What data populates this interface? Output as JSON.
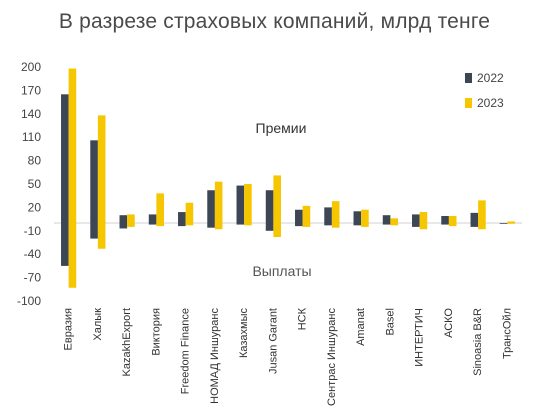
{
  "chart_data": {
    "type": "bar",
    "title": "В разрезе страховых компаний, млрд тенге",
    "annotations": {
      "premiums": "Премии",
      "payouts": "Выплаты"
    },
    "categories": [
      "Евразия",
      "Халык",
      "KazakhExport",
      "Виктория",
      "Freedom Finance",
      "НОМАД Иншуранс",
      "Казахмыс",
      "Jusan Garant",
      "НСК",
      "Сентрас Иншуранс",
      "Amanat",
      "Basel",
      "ИНТЕРТИЧ",
      "АСКО",
      "Sinoasia B&R",
      "ТрансОйл"
    ],
    "series": [
      {
        "name": "2022",
        "color": "#3d4654",
        "premiums": [
          165,
          106,
          10,
          11,
          14,
          42,
          48,
          42,
          17,
          20,
          15,
          10,
          11,
          9,
          13,
          0
        ],
        "payouts": [
          -55,
          -20,
          -7,
          -2,
          -4,
          -6,
          -2,
          -10,
          -4,
          -3,
          -3,
          -2,
          -5,
          -2,
          -5,
          -1
        ]
      },
      {
        "name": "2023",
        "color": "#f6c600",
        "premiums": [
          198,
          138,
          11,
          38,
          26,
          53,
          50,
          61,
          22,
          28,
          17,
          6,
          14,
          9,
          29,
          2
        ],
        "payouts": [
          -83,
          -33,
          -5,
          -4,
          -3,
          -8,
          -3,
          -18,
          -5,
          -6,
          -5,
          -3,
          -8,
          -4,
          -8,
          -1
        ]
      }
    ],
    "ylim": [
      -100,
      200
    ],
    "yticks": [
      -100,
      -70,
      -40,
      -10,
      20,
      50,
      80,
      110,
      140,
      170,
      200
    ],
    "xlabel": "",
    "ylabel": "",
    "legend_position": "right",
    "grid": false
  }
}
